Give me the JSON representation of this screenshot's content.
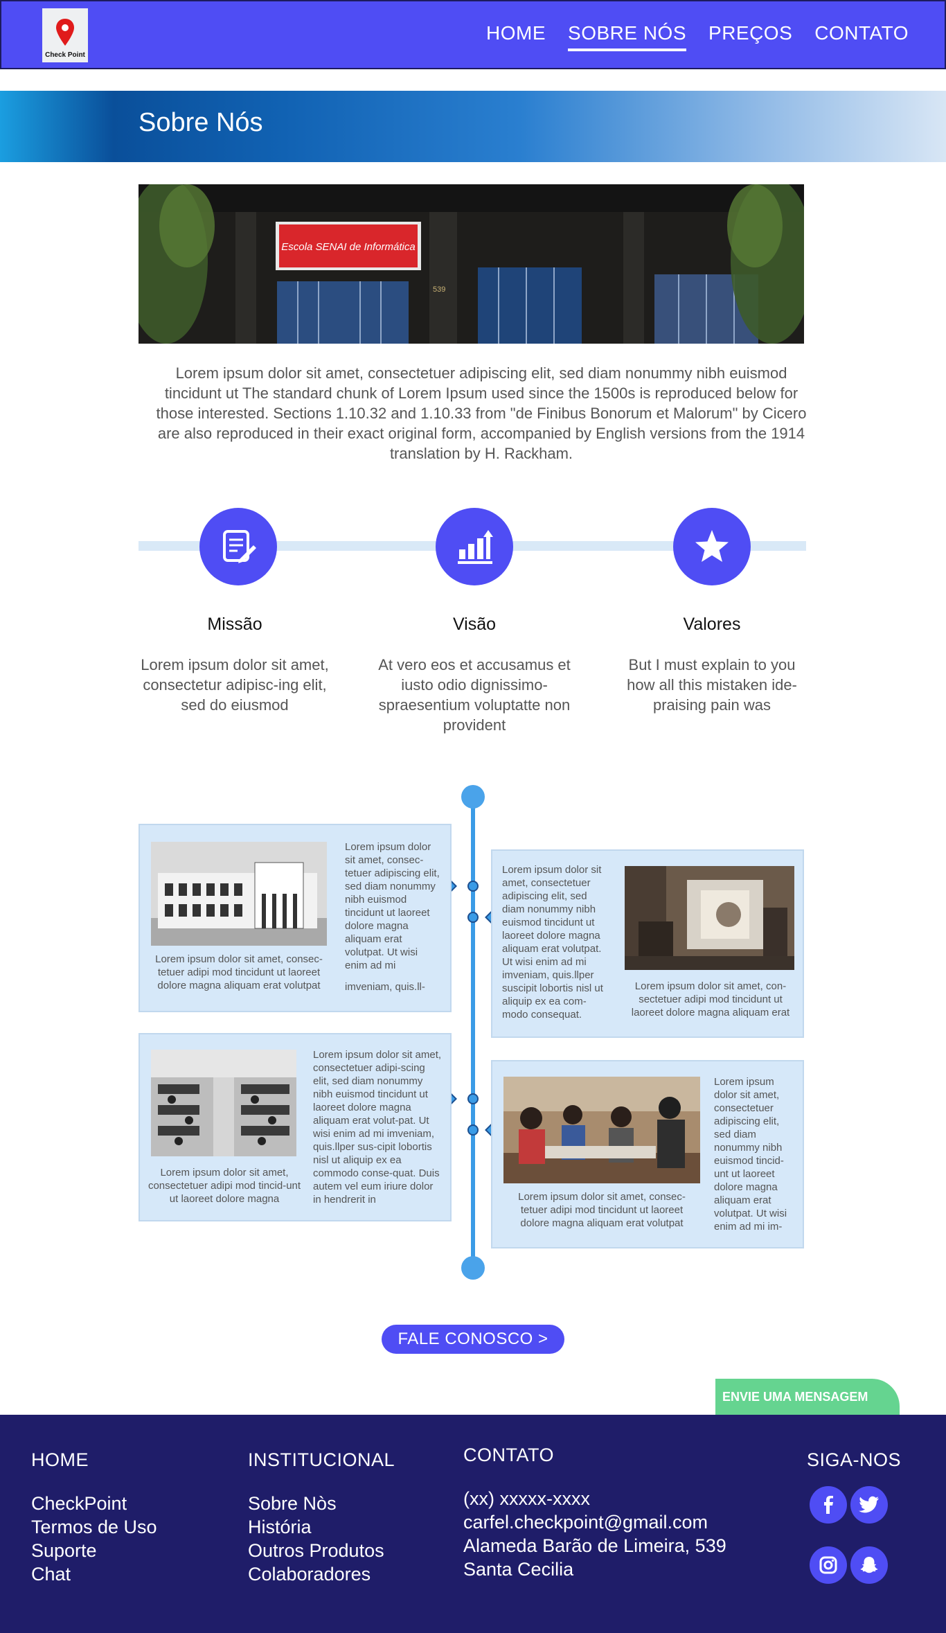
{
  "header": {
    "logo_text": "Check Point",
    "nav": [
      {
        "label": "HOME"
      },
      {
        "label": "SOBRE NÓS"
      },
      {
        "label": "PREÇOS"
      },
      {
        "label": "CONTATO"
      }
    ],
    "active_nav": "SOBRE NÓS"
  },
  "banner": {
    "title": "Sobre Nós"
  },
  "building": {
    "sign_text": "Escola SENAI de Informática",
    "number": "539"
  },
  "intro": {
    "text": "Lorem ipsum dolor sit amet, consectetuer adipiscing elit, sed diam nonummy nibh euismod tincidunt ut The standard chunk of Lorem Ipsum used since the 1500s is reproduced below for those interested. Sections 1.10.32 and 1.10.33 from \"de Finibus Bonorum et Malorum\" by Cicero are also reproduced in their exact original form, accompanied by English versions from the 1914 translation by H. Rackham."
  },
  "values": [
    {
      "icon": "document-edit-icon",
      "title": "Missão",
      "text": "Lorem ipsum dolor sit amet, consectetur adipisc-ing elit, sed do eiusmod"
    },
    {
      "icon": "bar-chart-up-icon",
      "title": "Visão",
      "text": "At vero eos et accusamus et iusto odio dignissimo-spraesentium voluptatte non provident"
    },
    {
      "icon": "star-icon",
      "title": "Valores",
      "text": "But I must explain to you how all this mistaken ide-praising pain was"
    }
  ],
  "timeline": [
    {
      "side_text": "Lorem ipsum dolor sit amet, consec-tetuer adipiscing elit, sed diam nonummy nibh euismod tincidunt ut laoreet dolore magna aliquam erat volutpat. Ut wisi enim ad mi",
      "side_text_2": "imveniam, quis.ll-",
      "caption": "Lorem ipsum dolor sit amet, consec-tetuer adipi mod tincidunt ut laoreet dolore magna aliquam erat volutpat"
    },
    {
      "side_text": "Lorem ipsum dolor sit amet, consectetuer adipiscing elit, sed diam nonummy nibh euismod tincidunt ut laoreet dolore magna aliquam erat volutpat. Ut wisi enim ad mi imveniam, quis.llper suscipit lobortis nisl ut aliquip ex ea com-modo consequat.",
      "caption": "Lorem ipsum dolor sit amet, con-sectetuer adipi mod tincidunt ut laoreet dolore magna aliquam erat"
    },
    {
      "side_text": "Lorem ipsum dolor sit amet, consectetuer adipi-scing elit, sed diam nonummy nibh euismod tincidunt ut laoreet dolore magna aliquam erat volut-pat. Ut wisi enim ad mi imveniam, quis.llper sus-cipit lobortis nisl ut aliquip ex ea commodo conse-quat. Duis autem vel eum iriure dolor in hendrerit in",
      "caption": "Lorem ipsum dolor sit amet, consectetuer adipi mod tincid-unt ut laoreet dolore magna"
    },
    {
      "side_text": "Lorem ipsum dolor sit amet, consectetuer adipiscing elit, sed diam nonummy nibh euismod tincid-unt ut laoreet dolore magna aliquam erat volutpat. Ut wisi enim ad mi im-",
      "caption": "Lorem ipsum dolor sit amet, consec-tetuer adipi mod tincidunt ut laoreet dolore magna aliquam erat volutpat"
    }
  ],
  "cta": {
    "label": "FALE CONOSCO >"
  },
  "message_tab": {
    "label": "ENVIE UMA MENSAGEM"
  },
  "footer": {
    "home": {
      "title": "HOME",
      "links": [
        "CheckPoint",
        "Termos de Uso",
        "Suporte",
        "Chat"
      ]
    },
    "institucional": {
      "title": "INSTITUCIONAL",
      "links": [
        "Sobre Nòs",
        "História",
        "Outros Produtos",
        "Colaboradores"
      ]
    },
    "contato": {
      "title": "CONTATO",
      "lines": [
        "(xx) xxxxx-xxxx",
        "carfel.checkpoint@gmail.com",
        "Alameda Barão de Limeira, 539",
        "Santa Cecilia"
      ]
    },
    "social": {
      "title": "SIGA-NOS",
      "icons": [
        "facebook-icon",
        "twitter-icon",
        "instagram-icon",
        "snapchat-icon"
      ]
    }
  },
  "colors": {
    "brand": "#4f4df4",
    "footer": "#1f1d69",
    "timeline": "#3a9be6",
    "card_bg": "#d6e8f9",
    "message_tab": "#65d490"
  }
}
